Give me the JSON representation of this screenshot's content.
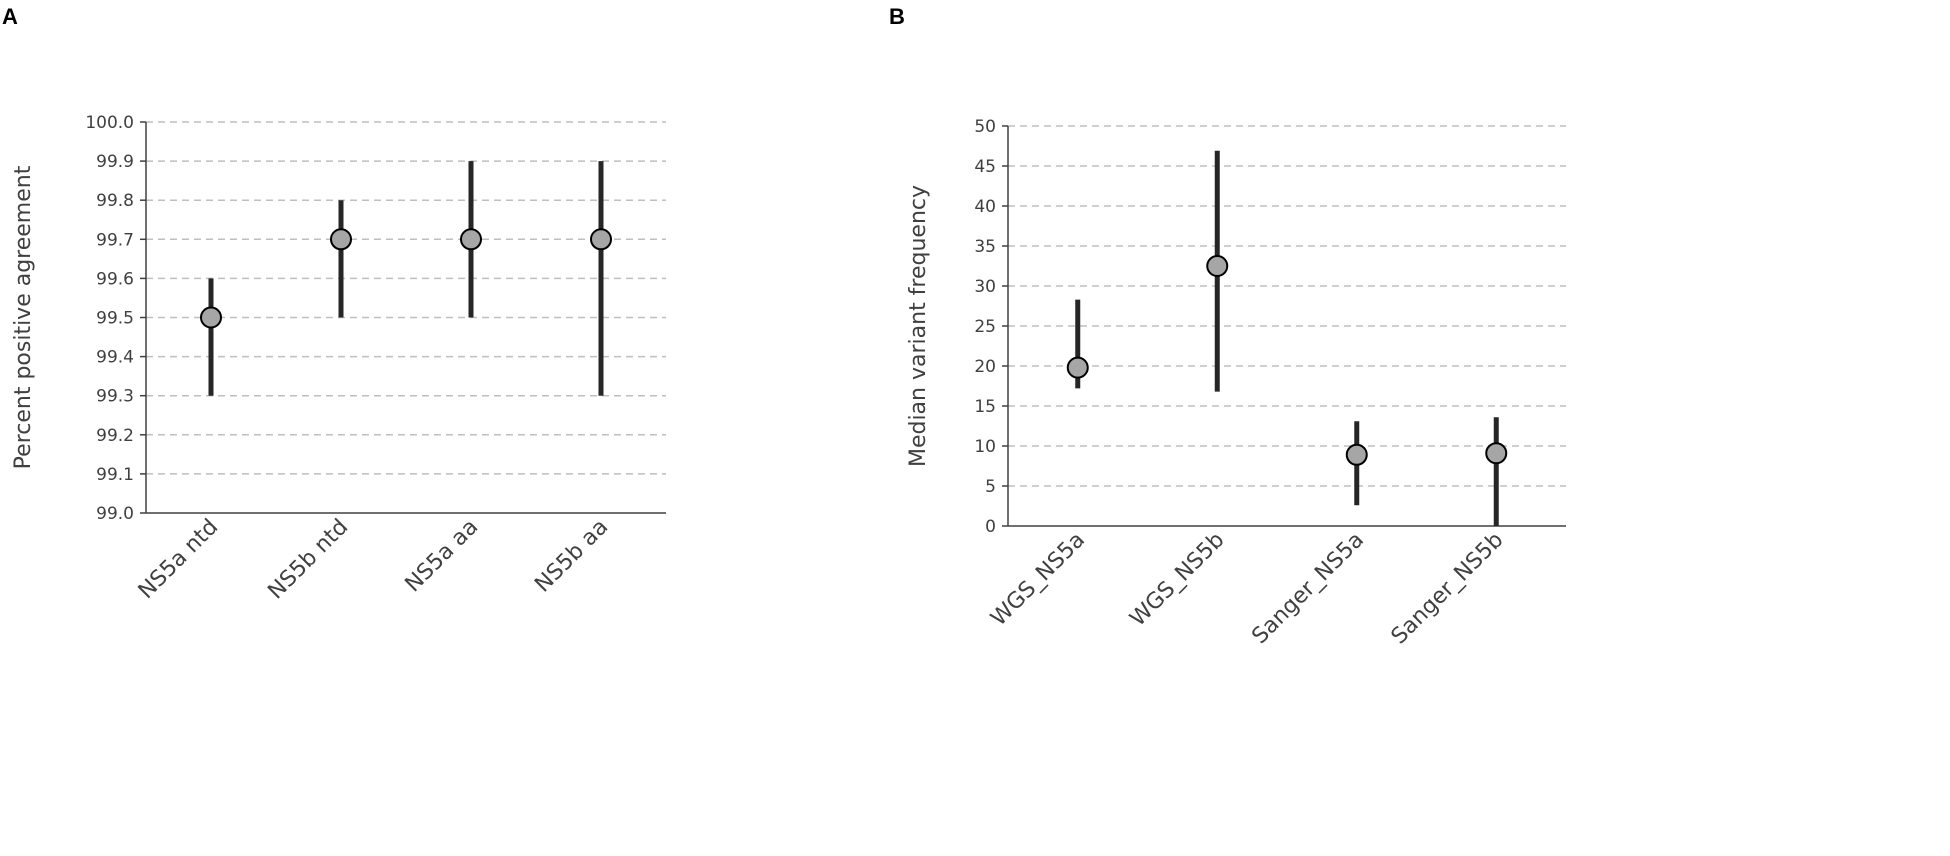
{
  "panels": {
    "a_label": "A",
    "b_label": "B"
  },
  "colors": {
    "marker_fill": "#a6a6a6",
    "marker_stroke": "#000000",
    "error_bar": "#262626",
    "grid": "#bfbfbf",
    "axis": "#404040",
    "text": "#404040"
  },
  "chart_data": [
    {
      "type": "scatter",
      "title": "",
      "xlabel": "",
      "ylabel": "Percent positive agreement",
      "ylim": [
        99.0,
        100.0
      ],
      "yticks": [
        "99.0",
        "99.1",
        "99.2",
        "99.3",
        "99.4",
        "99.5",
        "99.6",
        "99.7",
        "99.8",
        "99.9",
        "100.0"
      ],
      "grid": true,
      "categories": [
        "NS5a ntd",
        "NS5b ntd",
        "NS5a aa",
        "NS5b aa"
      ],
      "values": [
        99.5,
        99.7,
        99.7,
        99.7
      ],
      "error_low": [
        99.3,
        99.5,
        99.5,
        99.3
      ],
      "error_high": [
        99.6,
        99.8,
        99.9,
        99.9
      ]
    },
    {
      "type": "scatter",
      "title": "",
      "xlabel": "",
      "ylabel": "Median variant frequency",
      "ylim": [
        0,
        50
      ],
      "yticks": [
        "0",
        "5",
        "10",
        "15",
        "20",
        "25",
        "30",
        "35",
        "40",
        "45",
        "50"
      ],
      "grid": true,
      "categories": [
        "WGS_NS5a",
        "WGS_NS5b",
        "Sanger_NS5a",
        "Sanger_NS5b"
      ],
      "values": [
        19.8,
        32.5,
        8.9,
        9.1
      ],
      "error_low": [
        17.2,
        16.8,
        2.6,
        0
      ],
      "error_high": [
        28.3,
        46.9,
        13.1,
        13.6
      ]
    }
  ]
}
